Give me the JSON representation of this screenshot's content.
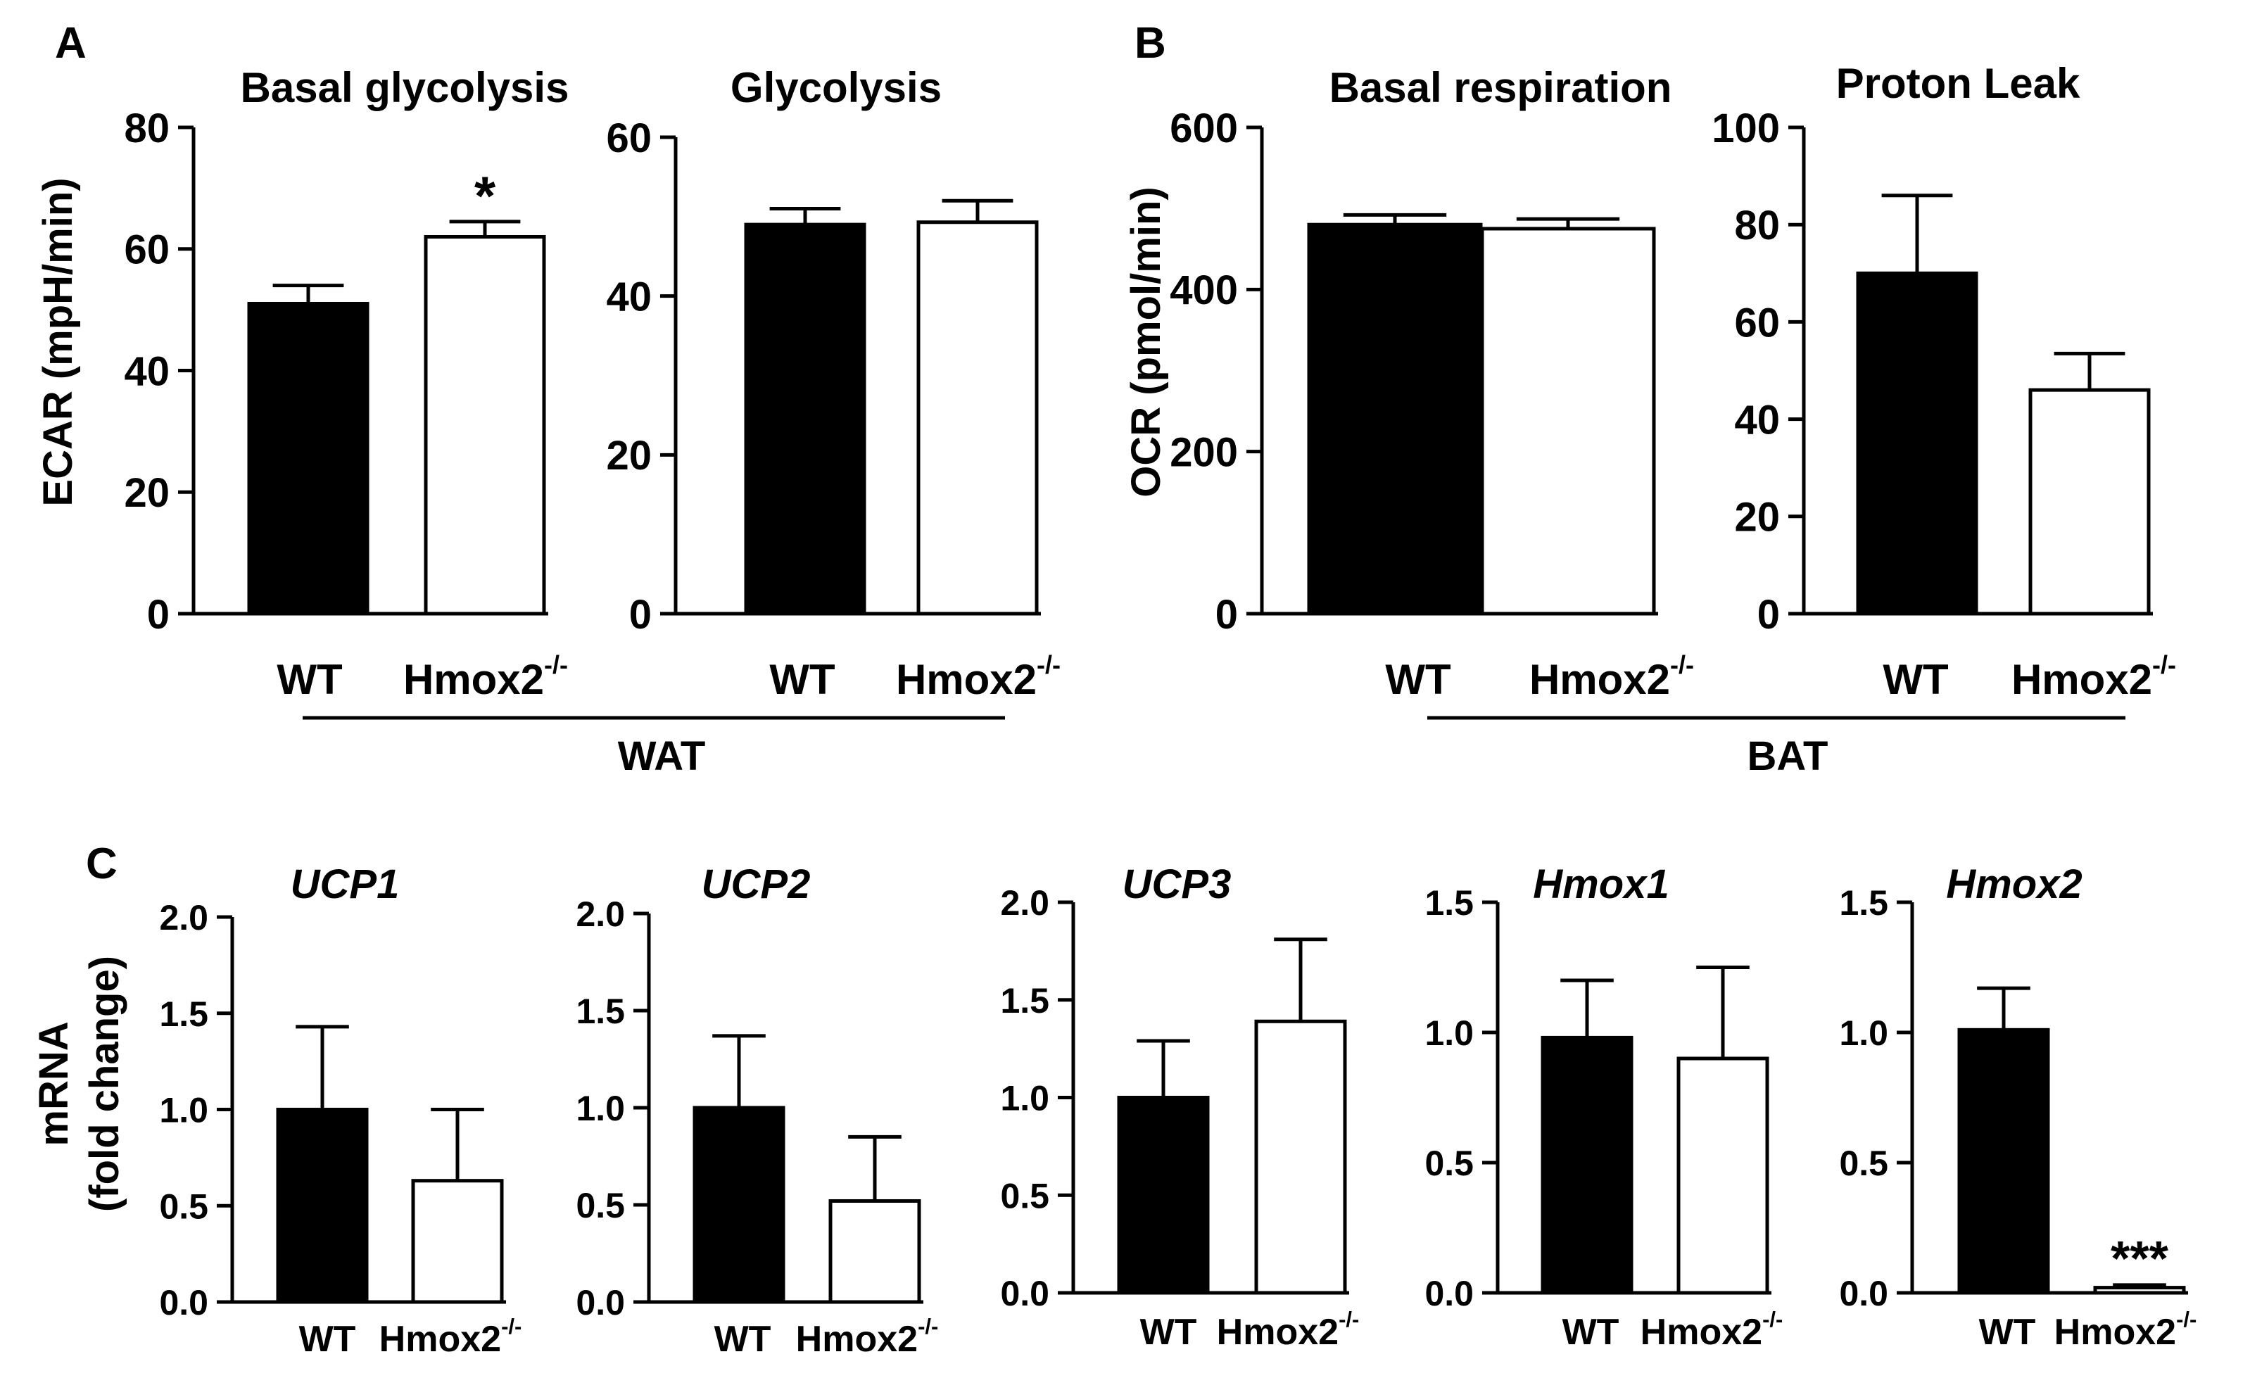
{
  "figure": {
    "panel_letters": [
      "A",
      "B",
      "C"
    ],
    "group_labels": [
      "WAT",
      "BAT"
    ],
    "genotype_wt": "WT",
    "genotype_ko": "Hmox2",
    "ko_superscript": "-/-",
    "colors": {
      "wt_fill": "#000000",
      "ko_fill": "#ffffff",
      "stroke": "#000000"
    }
  },
  "chart_data": [
    {
      "id": "A1",
      "panel": "A",
      "type": "bar",
      "title": "Basal glycolysis",
      "title_italic": false,
      "ylabel": "ECAR (mpH/min)",
      "ylim": [
        0,
        80
      ],
      "yticks": [
        "0",
        "20",
        "40",
        "60",
        "80"
      ],
      "categories": [
        "WT",
        "Hmox2-/-"
      ],
      "values": [
        51,
        62
      ],
      "errors": [
        3,
        2.5
      ],
      "annotations": [
        "",
        "*"
      ]
    },
    {
      "id": "A2",
      "panel": "A",
      "type": "bar",
      "title": "Glycolysis",
      "title_italic": false,
      "ylabel": "",
      "ylim": [
        0,
        60
      ],
      "yticks": [
        "0",
        "20",
        "40",
        "60"
      ],
      "categories": [
        "WT",
        "Hmox2-/-"
      ],
      "values": [
        49,
        49.3
      ],
      "errors": [
        2,
        2.7
      ],
      "annotations": [
        "",
        ""
      ]
    },
    {
      "id": "B1",
      "panel": "B",
      "type": "bar",
      "title": "Basal respiration",
      "title_italic": false,
      "ylabel": "OCR (pmol/min)",
      "ylim": [
        0,
        600
      ],
      "yticks": [
        "0",
        "200",
        "400",
        "600"
      ],
      "categories": [
        "WT",
        "Hmox2-/-"
      ],
      "values": [
        480,
        475
      ],
      "errors": [
        12,
        12
      ],
      "annotations": [
        "",
        ""
      ]
    },
    {
      "id": "B2",
      "panel": "B",
      "type": "bar",
      "title": "Proton Leak",
      "title_italic": false,
      "ylabel": "",
      "ylim": [
        0,
        100
      ],
      "yticks": [
        "0",
        "20",
        "40",
        "60",
        "80",
        "100"
      ],
      "categories": [
        "WT",
        "Hmox2-/-"
      ],
      "values": [
        70,
        46
      ],
      "errors": [
        16,
        7.5
      ],
      "annotations": [
        "",
        ""
      ]
    },
    {
      "id": "C1",
      "panel": "C",
      "type": "bar",
      "title": "UCP1",
      "title_italic": true,
      "ylabel": "mRNA (fold change)",
      "ylim": [
        0,
        2
      ],
      "yticks": [
        "0.0",
        "0.5",
        "1.0",
        "1.5",
        "2.0"
      ],
      "categories": [
        "WT",
        "Hmox2-/-"
      ],
      "values": [
        1.0,
        0.63
      ],
      "errors": [
        0.43,
        0.37
      ],
      "annotations": [
        "",
        ""
      ]
    },
    {
      "id": "C2",
      "panel": "C",
      "type": "bar",
      "title": "UCP2",
      "title_italic": true,
      "ylabel": "",
      "ylim": [
        0,
        2
      ],
      "yticks": [
        "0.0",
        "0.5",
        "1.0",
        "1.5",
        "2.0"
      ],
      "categories": [
        "WT",
        "Hmox2-/-"
      ],
      "values": [
        1.0,
        0.52
      ],
      "errors": [
        0.37,
        0.33
      ],
      "annotations": [
        "",
        ""
      ]
    },
    {
      "id": "C3",
      "panel": "C",
      "type": "bar",
      "title": "UCP3",
      "title_italic": true,
      "ylabel": "",
      "ylim": [
        0,
        2
      ],
      "yticks": [
        "0.0",
        "0.5",
        "1.0",
        "1.5",
        "2.0"
      ],
      "categories": [
        "WT",
        "Hmox2-/-"
      ],
      "values": [
        1.0,
        1.39
      ],
      "errors": [
        0.29,
        0.42
      ],
      "annotations": [
        "",
        ""
      ]
    },
    {
      "id": "C4",
      "panel": "C",
      "type": "bar",
      "title": "Hmox1",
      "title_italic": true,
      "ylabel": "",
      "ylim": [
        0,
        1.5
      ],
      "yticks": [
        "0.0",
        "0.5",
        "1.0",
        "1.5"
      ],
      "categories": [
        "WT",
        "Hmox2-/-"
      ],
      "values": [
        0.98,
        0.9
      ],
      "errors": [
        0.22,
        0.35
      ],
      "annotations": [
        "",
        ""
      ]
    },
    {
      "id": "C5",
      "panel": "C",
      "type": "bar",
      "title": "Hmox2",
      "title_italic": true,
      "ylabel": "",
      "ylim": [
        0,
        1.5
      ],
      "yticks": [
        "0.0",
        "0.5",
        "1.0",
        "1.5"
      ],
      "categories": [
        "WT",
        "Hmox2-/-"
      ],
      "values": [
        1.01,
        0.02
      ],
      "errors": [
        0.16,
        0.01
      ],
      "annotations": [
        "",
        "***"
      ]
    }
  ]
}
